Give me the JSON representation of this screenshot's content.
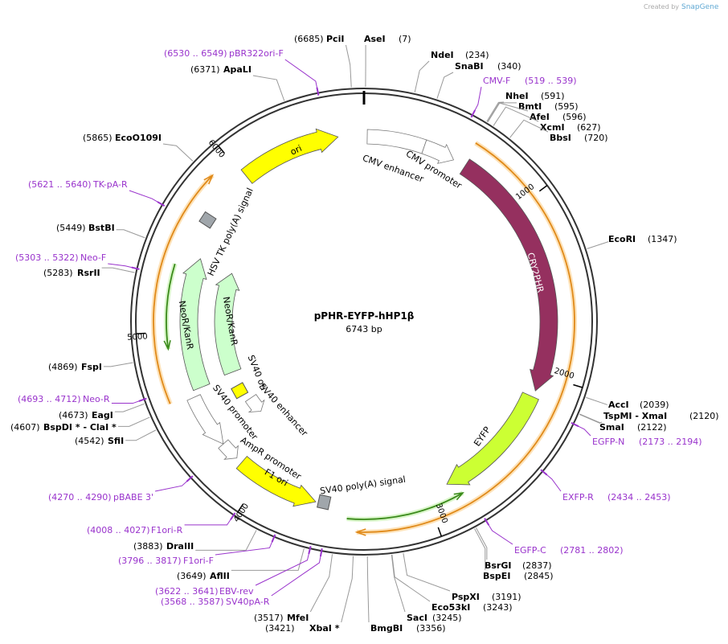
{
  "header": {
    "created_by": "Created by",
    "brand": "SnapGene"
  },
  "plasmid": {
    "name": "pPHR-EYFP-hHP1β",
    "size": "6743 bp"
  },
  "scale_ticks": [
    "1000",
    "2000",
    "3000",
    "4000",
    "5000",
    "6000"
  ],
  "sites": [
    {
      "name": "PciI",
      "pos": "(6685)"
    },
    {
      "name": "AseI",
      "pos": "(7)"
    },
    {
      "name": "NdeI",
      "pos": "(234)"
    },
    {
      "name": "SnaBI",
      "pos": "(340)"
    },
    {
      "name": "NheI",
      "pos": "(591)"
    },
    {
      "name": "BmtI",
      "pos": "(595)"
    },
    {
      "name": "AfeI",
      "pos": "(596)"
    },
    {
      "name": "XcmI",
      "pos": "(627)"
    },
    {
      "name": "BbsI",
      "pos": "(720)"
    },
    {
      "name": "EcoRI",
      "pos": "(1347)"
    },
    {
      "name": "AccI",
      "pos": "(2039)"
    },
    {
      "name": "TspMI  - XmaI",
      "pos": "(2120)"
    },
    {
      "name": "SmaI",
      "pos": "(2122)"
    },
    {
      "name": "BsrGI",
      "pos": "(2837)"
    },
    {
      "name": "BspEI",
      "pos": "(2845)"
    },
    {
      "name": "PspXI",
      "pos": "(3191)"
    },
    {
      "name": "Eco53kI",
      "pos": "(3243)"
    },
    {
      "name": "SacI",
      "pos": "(3245)"
    },
    {
      "name": "BmgBI",
      "pos": "(3356)"
    },
    {
      "name": "MfeI",
      "pos": "(3517)"
    },
    {
      "name": "XbaI *",
      "pos": "(3421)"
    },
    {
      "name": "AflII",
      "pos": "(3649)"
    },
    {
      "name": "DraIII",
      "pos": "(3883)"
    },
    {
      "name": "SfiI",
      "pos": "(4542)"
    },
    {
      "name": "BspDI * - ClaI *",
      "pos": "(4607)"
    },
    {
      "name": "EagI",
      "pos": "(4673)"
    },
    {
      "name": "FspI",
      "pos": "(4869)"
    },
    {
      "name": "RsrII",
      "pos": "(5283)"
    },
    {
      "name": "BstBI",
      "pos": "(5449)"
    },
    {
      "name": "EcoO109I",
      "pos": "(5865)"
    },
    {
      "name": "ApaLI",
      "pos": "(6371)"
    }
  ],
  "primers": [
    {
      "name": "pBR322ori-F",
      "range": "(6530 .. 6549)"
    },
    {
      "name": "CMV-F",
      "range": "(519 .. 539)"
    },
    {
      "name": "TK-pA-R",
      "range": "(5621 .. 5640)"
    },
    {
      "name": "Neo-F",
      "range": "(5303 .. 5322)"
    },
    {
      "name": "Neo-R",
      "range": "(4693 .. 4712)"
    },
    {
      "name": "EGFP-N",
      "range": "(2173 .. 2194)"
    },
    {
      "name": "EXFP-R",
      "range": "(2434 .. 2453)"
    },
    {
      "name": "pBABE 3'",
      "range": "(4270 .. 4290)"
    },
    {
      "name": "F1ori-R",
      "range": "(4008 .. 4027)"
    },
    {
      "name": "EGFP-C",
      "range": "(2781 .. 2802)"
    },
    {
      "name": "F1ori-F",
      "range": "(3796 .. 3817)"
    },
    {
      "name": "EBV-rev",
      "range": "(3622 .. 3641)"
    },
    {
      "name": "SV40pA-R",
      "range": "(3568 .. 3587)"
    }
  ],
  "features": [
    "ori",
    "CMV enhancer",
    "CMV promoter",
    "CRY2PHR",
    "EYFP",
    "SV40 poly(A) signal",
    "AmpR promoter",
    "F1 ori",
    "SV40 promoter",
    "SV40 ori",
    "SV40 enhancer",
    "NeoR/KanR",
    "NeoR/KanR",
    "HSV TK poly(A) signal"
  ]
}
